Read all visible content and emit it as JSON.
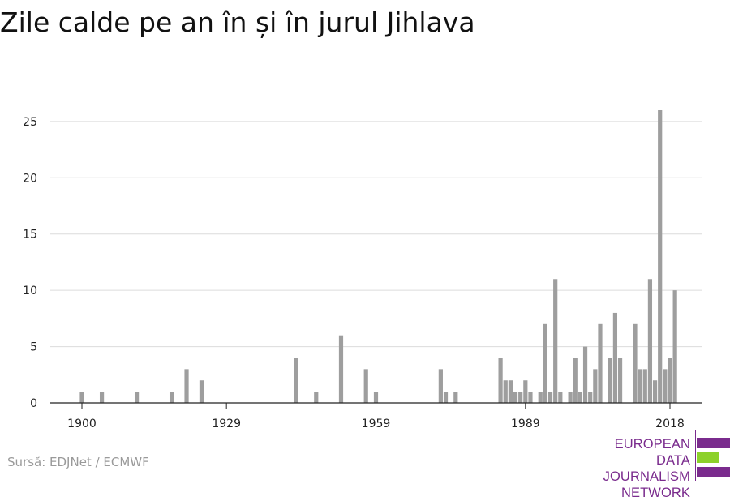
{
  "title": "Zile calde pe an în și în jurul Jihlava",
  "source": "Sursă: EDJNet / ECMWF",
  "logo": {
    "lines": [
      "EUROPEAN",
      "DATA JOURNALISM",
      "NETWORK"
    ],
    "colors": [
      "#7a2b8d",
      "#8cd12a",
      "#7a2b8d"
    ]
  },
  "chart_data": {
    "type": "bar",
    "title": "Zile calde pe an în și în jurul Jihlava",
    "xlabel": "",
    "ylabel": "",
    "ylim": [
      0,
      26
    ],
    "yticks": [
      0,
      5,
      10,
      15,
      20,
      25
    ],
    "xticks": [
      1900,
      1929,
      1959,
      1989,
      2018
    ],
    "xrange": [
      1900,
      2018
    ],
    "bar_color": "#9e9e9e",
    "grid": true,
    "data": [
      {
        "year": 1900,
        "value": 1
      },
      {
        "year": 1904,
        "value": 1
      },
      {
        "year": 1911,
        "value": 1
      },
      {
        "year": 1918,
        "value": 1
      },
      {
        "year": 1921,
        "value": 3
      },
      {
        "year": 1924,
        "value": 2
      },
      {
        "year": 1943,
        "value": 4
      },
      {
        "year": 1947,
        "value": 1
      },
      {
        "year": 1952,
        "value": 6
      },
      {
        "year": 1957,
        "value": 3
      },
      {
        "year": 1959,
        "value": 1
      },
      {
        "year": 1972,
        "value": 3
      },
      {
        "year": 1973,
        "value": 1
      },
      {
        "year": 1975,
        "value": 1
      },
      {
        "year": 1984,
        "value": 4
      },
      {
        "year": 1985,
        "value": 2
      },
      {
        "year": 1986,
        "value": 2
      },
      {
        "year": 1987,
        "value": 1
      },
      {
        "year": 1988,
        "value": 1
      },
      {
        "year": 1989,
        "value": 2
      },
      {
        "year": 1990,
        "value": 1
      },
      {
        "year": 1992,
        "value": 1
      },
      {
        "year": 1993,
        "value": 7
      },
      {
        "year": 1994,
        "value": 1
      },
      {
        "year": 1995,
        "value": 11
      },
      {
        "year": 1996,
        "value": 1
      },
      {
        "year": 1998,
        "value": 1
      },
      {
        "year": 1999,
        "value": 4
      },
      {
        "year": 2000,
        "value": 1
      },
      {
        "year": 2001,
        "value": 5
      },
      {
        "year": 2002,
        "value": 1
      },
      {
        "year": 2003,
        "value": 3
      },
      {
        "year": 2004,
        "value": 7
      },
      {
        "year": 2006,
        "value": 4
      },
      {
        "year": 2007,
        "value": 8
      },
      {
        "year": 2008,
        "value": 4
      },
      {
        "year": 2011,
        "value": 7
      },
      {
        "year": 2012,
        "value": 3
      },
      {
        "year": 2013,
        "value": 3
      },
      {
        "year": 2014,
        "value": 11
      },
      {
        "year": 2015,
        "value": 2
      },
      {
        "year": 2016,
        "value": 26
      },
      {
        "year": 2017,
        "value": 3
      },
      {
        "year": 2018,
        "value": 4
      },
      {
        "year": 2019,
        "value": 10
      }
    ]
  }
}
